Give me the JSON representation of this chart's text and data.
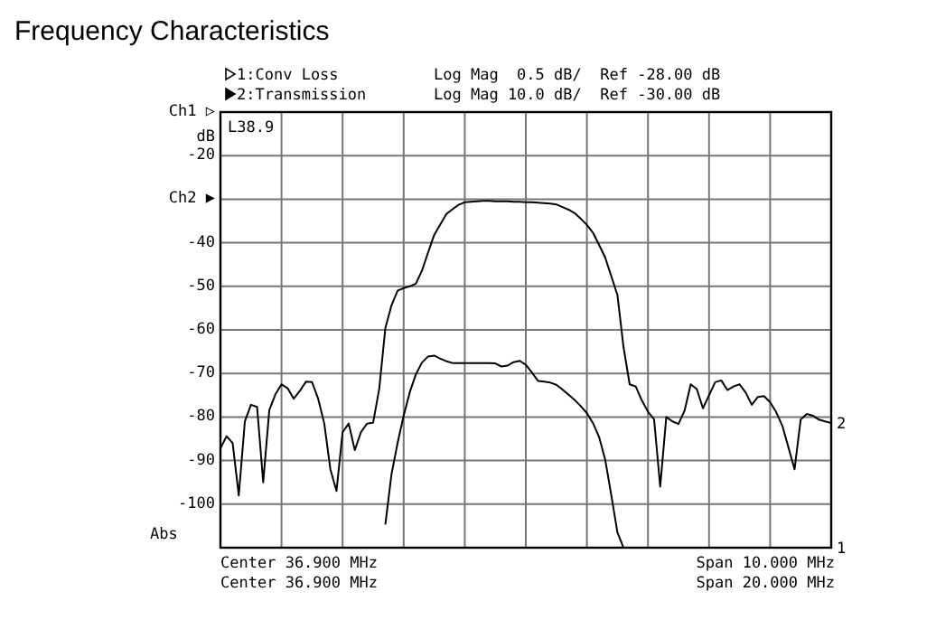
{
  "chart_data": {
    "type": "line",
    "title": "Frequency Characteristics",
    "ylabel": "dB",
    "categories": [
      null,
      null,
      null,
      null,
      null,
      null,
      null,
      null,
      null,
      null,
      null,
      null,
      null,
      null,
      null,
      null,
      null,
      null,
      null,
      null,
      null,
      null,
      null,
      null,
      null,
      null,
      null,
      null,
      null,
      null,
      null,
      null,
      null,
      null,
      null,
      null,
      null,
      null,
      null,
      null,
      null,
      null,
      null,
      null,
      null,
      null,
      null,
      null,
      null,
      null,
      null,
      null,
      null,
      null,
      null,
      null,
      null,
      null,
      null,
      null,
      null,
      null,
      null,
      null,
      null,
      null,
      null,
      null,
      null,
      null,
      null,
      null,
      null,
      null,
      null,
      null,
      null,
      null,
      null,
      null,
      null,
      null,
      null,
      null,
      null,
      null,
      null,
      null,
      null,
      null,
      null,
      null,
      null,
      null,
      null,
      null,
      null,
      null,
      null,
      null,
      null
    ],
    "ylim": [
      -110,
      -10
    ],
    "yticks": [
      {
        "value": -10,
        "label": "Ch1 ▷"
      },
      -20,
      {
        "value": -30,
        "label": "Ch2 ▶"
      },
      -40,
      -50,
      -60,
      -70,
      -80,
      -90,
      -100,
      {
        "value": -110,
        "label": null
      }
    ],
    "grid": true,
    "tick_labels": "y",
    "legend": "top left",
    "line_style": "solid",
    "marker": "none",
    "series": [
      {
        "name": "1:Conv Loss",
        "color": "#000000",
        "values": [
          null,
          null,
          null,
          null,
          null,
          null,
          null,
          null,
          null,
          null,
          null,
          null,
          null,
          null,
          null,
          null,
          null,
          null,
          null,
          null,
          null,
          null,
          null,
          null,
          null,
          null,
          null,
          -104.7,
          -93.2,
          -86,
          -79.7,
          -74.3,
          -70.2,
          -67.5,
          -66.1,
          -65.9,
          -66.6,
          -67.2,
          -67.6,
          -67.6,
          -67.6,
          -67.6,
          -67.6,
          -67.6,
          -67.6,
          -67.7,
          -68.4,
          -68.2,
          -67.4,
          -67.1,
          -68,
          -69.8,
          -71.7,
          -71.9,
          -72.1,
          -72.6,
          -73.7,
          -74.9,
          -76.1,
          -77.5,
          -79.1,
          -81.4,
          -84.6,
          -89.8,
          -98,
          -106.5,
          -110,
          -110,
          -110,
          -110,
          -110,
          -110,
          -110,
          -110,
          -110,
          -110,
          -110,
          -110,
          -110,
          -110,
          -110,
          -110,
          -110,
          -110,
          -110,
          -110,
          -110,
          -110,
          -110,
          -110,
          -110,
          -110,
          -110,
          -110,
          -110,
          -110,
          -110,
          -110,
          -110,
          -110,
          -110
        ]
      },
      {
        "name": "2:Transmission",
        "color": "#000000",
        "values": [
          -87.2,
          -84.4,
          -86,
          -98,
          -81,
          -77.2,
          -77.7,
          -95,
          -78.4,
          -74.8,
          -72.5,
          -73.4,
          -75.8,
          -74,
          -71.9,
          -72,
          -75.8,
          -81.5,
          -92,
          -97,
          -83.5,
          -81.5,
          -87.6,
          -83.5,
          -81.5,
          -81.3,
          -73.5,
          -59.6,
          -54.4,
          -51,
          -50.4,
          -50,
          -49.4,
          -46.4,
          -42.2,
          -38.2,
          -35.8,
          -33.4,
          -32.3,
          -31.3,
          -30.7,
          -30.6,
          -30.5,
          -30.4,
          -30.4,
          -30.5,
          -30.5,
          -30.5,
          -30.6,
          -30.6,
          -30.7,
          -30.7,
          -30.8,
          -30.9,
          -31,
          -31.2,
          -31.8,
          -32.4,
          -33.2,
          -34.5,
          -35.9,
          -37.7,
          -40.5,
          -43.4,
          -47.7,
          -52,
          -64,
          -72.5,
          -73,
          -76.2,
          -78.8,
          -80.5,
          -96,
          -80,
          -81,
          -81.6,
          -78.5,
          -72.5,
          -73.6,
          -78,
          -75,
          -72,
          -71.6,
          -73.8,
          -73,
          -72.5,
          -74.4,
          -77.2,
          -75.4,
          -75.2,
          -76.6,
          -78.9,
          -82,
          -87,
          -92,
          -80.6,
          -79.3,
          -79.7,
          -80.6,
          -81,
          -81.4
        ]
      }
    ],
    "annotations": [
      "Log Mag  0.5 dB/  Ref -28.00 dB",
      "Log Mag 10.0 dB/  Ref -30.00 dB",
      "L38.9",
      "Abs",
      "Center 36.900 MHz",
      "Center 36.900 MHz",
      "Span 10.000 MHz",
      "Span 20.000 MHz",
      "2",
      "1"
    ]
  }
}
